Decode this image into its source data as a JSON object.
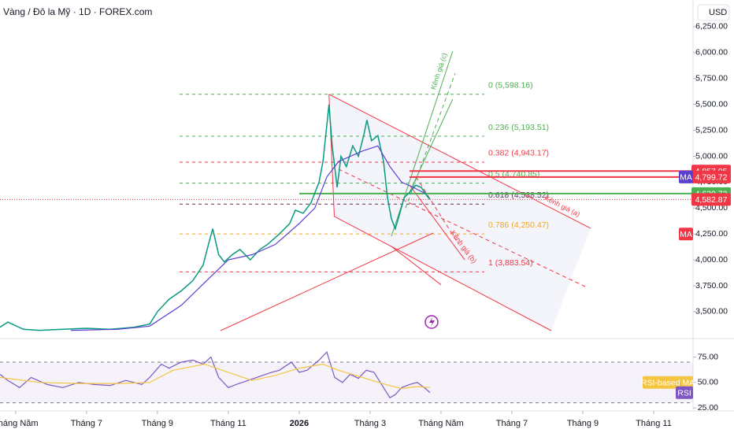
{
  "chart_data": {
    "type": "line",
    "title": "Vàng / Đô la Mỹ · 1D · FOREX.com",
    "currency": "USD",
    "xlim": [
      -0.44,
      19.11
    ],
    "xticks": [
      {
        "value": 0,
        "label": "Tháng Năm"
      },
      {
        "value": 2,
        "label": "Tháng 7"
      },
      {
        "value": 4,
        "label": "Tháng 9"
      },
      {
        "value": 6,
        "label": "Tháng 11"
      },
      {
        "value": 8,
        "label": "2026"
      },
      {
        "value": 10,
        "label": "Tháng 3"
      },
      {
        "value": 12,
        "label": "Tháng Năm"
      },
      {
        "value": 14,
        "label": "Tháng 7"
      },
      {
        "value": 16,
        "label": "Tháng 9"
      },
      {
        "value": 18,
        "label": "Tháng 11"
      }
    ],
    "ylim": [
      3241,
      6508
    ],
    "yticks": [
      {
        "value": 3500,
        "label": "3,500.00"
      },
      {
        "value": 3750,
        "label": "3,750.00"
      },
      {
        "value": 4000,
        "label": "4,000.00"
      },
      {
        "value": 4250,
        "label": "4,250.00"
      },
      {
        "value": 4500,
        "label": "4,500.00"
      },
      {
        "value": 4750,
        "label": "4,750.00"
      },
      {
        "value": 5000,
        "label": "5,000.00"
      },
      {
        "value": 5250,
        "label": "5,250.00"
      },
      {
        "value": 5500,
        "label": "5,500.00"
      },
      {
        "value": 5750,
        "label": "5,750.00"
      },
      {
        "value": 6000,
        "label": "6,000.00"
      },
      {
        "value": 6250,
        "label": "6,250.00"
      }
    ],
    "series": [
      {
        "color": "#089981",
        "x": [
          -0.44,
          -0.22,
          0.22,
          0.67,
          1.33,
          2,
          2.67,
          3.33,
          3.78,
          4,
          4.33,
          4.67,
          5,
          5.29,
          5.44,
          5.56,
          5.73,
          5.89,
          6.11,
          6.33,
          6.62,
          6.89,
          7.11,
          7.44,
          7.73,
          7.89,
          8.11,
          8.33,
          8.56,
          8.67,
          8.78,
          8.84,
          8.93,
          9.07,
          9.18,
          9.33,
          9.51,
          9.67,
          9.82,
          9.91,
          10.04,
          10.22,
          10.38,
          10.49,
          10.6,
          10.71,
          10.84,
          10.96,
          11.11,
          11.29,
          11.44,
          11.6,
          11.69
        ],
        "values": [
          3350,
          3400,
          3330,
          3320,
          3330,
          3340,
          3330,
          3350,
          3380,
          3500,
          3620,
          3700,
          3800,
          3950,
          4150,
          4300,
          4050,
          3980,
          4050,
          4100,
          4000,
          4100,
          4150,
          4250,
          4350,
          4480,
          4450,
          4550,
          4750,
          4950,
          5300,
          5500,
          5100,
          4700,
          5000,
          4900,
          5100,
          5000,
          5200,
          5350,
          5150,
          5200,
          4950,
          4600,
          4400,
          4300,
          4450,
          4600,
          4650,
          4720,
          4700,
          4620,
          4583
        ]
      },
      {
        "name": "MA",
        "color": "#5b3fd1",
        "x": [
          1.56,
          2.89,
          3.78,
          4.67,
          5.33,
          6,
          6.67,
          7.33,
          8,
          8.44,
          8.78,
          9.11,
          9.78,
          10.22,
          10.56,
          10.89,
          11.22,
          11.56
        ],
        "values": [
          3320,
          3330,
          3360,
          3560,
          3780,
          4000,
          4050,
          4150,
          4350,
          4500,
          4800,
          4950,
          5050,
          5100,
          4900,
          4750,
          4700,
          4640
        ]
      }
    ],
    "fib_levels": [
      {
        "value": 5598.16,
        "label": "0 (5,598.16)",
        "color": "#4caf50"
      },
      {
        "value": 5193.51,
        "label": "0.236 (5,193.51)",
        "color": "#4caf50"
      },
      {
        "value": 4943.17,
        "label": "0.382 (4,943.17)",
        "color": "#f23645"
      },
      {
        "value": 4740.85,
        "label": "0.5 (4,740.85)",
        "color": "#4caf50"
      },
      {
        "value": 4538.52,
        "label": "0.618 (4,538.52)",
        "color": "#6a2d5e"
      },
      {
        "value": 4250.47,
        "label": "0.786 (4,250.47)",
        "color": "#f5a623"
      },
      {
        "value": 3883.54,
        "label": "1 (3,883.54)",
        "color": "#f23645"
      }
    ],
    "price_labels": [
      {
        "value": 4857.05,
        "label": "4,857.05",
        "color": "#f23645"
      },
      {
        "value": 4799.72,
        "label": "4,799.72",
        "color": "#f23645"
      },
      {
        "value": 4639.73,
        "label": "4,639.73",
        "color": "#4caf50"
      },
      {
        "value": 4582.87,
        "label": "4,582.87",
        "color": "#f23645"
      }
    ],
    "indicator_badges": [
      {
        "label": "MA",
        "value": 4800,
        "color": "#7e57c2"
      },
      {
        "label": "MA",
        "value": 4250,
        "color": "#f23645"
      }
    ],
    "drawings": [
      {
        "label": "Kênh giá (a)",
        "color": "#f23645",
        "x": [
          8.84,
          16.22
        ],
        "values": [
          5598,
          4305
        ]
      },
      {
        "color": "#f23645",
        "x": [
          8.99,
          15.11
        ],
        "values": [
          4419,
          3317
        ]
      },
      {
        "color": "#f23645",
        "x": [
          8.84,
          8.99
        ],
        "values": [
          5598,
          4419
        ]
      },
      {
        "color": "#f23645",
        "x": [
          5.78,
          11.78
        ],
        "values": [
          3317,
          4259
        ]
      },
      {
        "color": "#f23645",
        "x": [
          10.6,
          12.0
        ],
        "values": [
          4130,
          3760
        ]
      },
      {
        "color": "#f23645",
        "x": [
          9.11,
          16.11
        ],
        "values": [
          4875,
          3735
        ],
        "dashed": true
      },
      {
        "label": "Kênh giá (c)",
        "color": "#4caf50",
        "x": [
          10.6,
          12.33
        ],
        "values": [
          4228,
          6014
        ]
      },
      {
        "color": "#4caf50",
        "x": [
          11.11,
          12.33
        ],
        "values": [
          4650,
          5550
        ]
      },
      {
        "color": "#4caf50",
        "x": [
          11.0,
          12.4
        ],
        "values": [
          4500,
          5800
        ],
        "dashed": true
      },
      {
        "label": "Kênh giá (b)",
        "color": "#f23645",
        "x": [
          11.11,
          12.67
        ],
        "values": [
          4723,
          4000
        ]
      },
      {
        "color": "#f23645",
        "x": [
          11.3,
          12.5
        ],
        "values": [
          4800,
          4150
        ],
        "dashed": true
      }
    ],
    "rsi": {
      "ylim": [
        23.5,
        91.7
      ],
      "yticks": [
        {
          "value": 25,
          "label": "25.00"
        },
        {
          "value": 50,
          "label": "50.00"
        },
        {
          "value": 75,
          "label": "75.00"
        }
      ],
      "band": [
        30,
        70
      ],
      "series": [
        {
          "name": "RSI",
          "color": "#7e57c2",
          "x": [
            -0.44,
            -0.22,
            0.11,
            0.44,
            0.89,
            1.33,
            1.78,
            2.22,
            2.67,
            3.11,
            3.56,
            3.78,
            4.11,
            4.33,
            4.67,
            5,
            5.29,
            5.51,
            5.73,
            6,
            6.22,
            6.56,
            6.89,
            7.22,
            7.44,
            7.78,
            8,
            8.22,
            8.56,
            8.78,
            9,
            9.22,
            9.44,
            9.67,
            9.89,
            10.11,
            10.38,
            10.56,
            10.71,
            10.89,
            11.11,
            11.33,
            11.56,
            11.69
          ],
          "values": [
            58,
            52,
            45,
            55,
            48,
            45,
            50,
            48,
            47,
            52,
            48,
            55,
            68,
            64,
            70,
            72,
            68,
            75,
            55,
            45,
            48,
            52,
            56,
            60,
            62,
            70,
            60,
            62,
            72,
            80,
            55,
            50,
            58,
            54,
            62,
            60,
            45,
            35,
            38,
            45,
            48,
            50,
            44,
            40
          ]
        },
        {
          "name": "RSI-based MA",
          "color": "#f5c542",
          "x": [
            -0.44,
            0.67,
            1.78,
            2.89,
            3.78,
            4.44,
            5.33,
            6,
            6.67,
            7.33,
            8,
            8.67,
            9.11,
            9.78,
            10.44,
            10.89,
            11.33,
            11.69
          ],
          "values": [
            55,
            50,
            49,
            49,
            50,
            62,
            68,
            60,
            52,
            57,
            64,
            68,
            62,
            55,
            48,
            44,
            46,
            45
          ]
        }
      ]
    }
  }
}
